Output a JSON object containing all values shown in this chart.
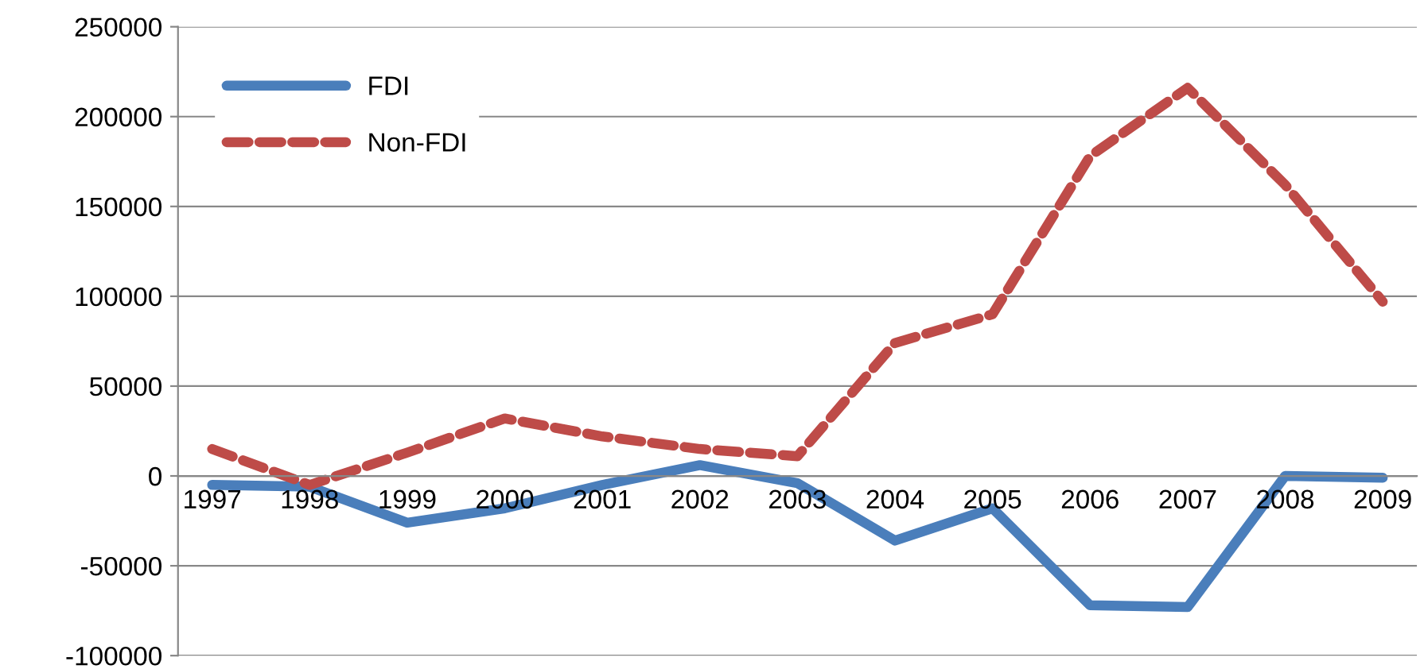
{
  "chart_data": {
    "type": "line",
    "categories": [
      "1997",
      "1998",
      "1999",
      "2000",
      "2001",
      "2002",
      "2003",
      "2004",
      "2005",
      "2006",
      "2007",
      "2008",
      "2009"
    ],
    "series": [
      {
        "name": "FDI",
        "color": "#4a7ebb",
        "line_style": "solid",
        "values": [
          -5000,
          -6000,
          -26000,
          -18000,
          -5000,
          6000,
          -4000,
          -36000,
          -18000,
          -72000,
          -73000,
          0,
          -1000
        ]
      },
      {
        "name": "Non-FDI",
        "color": "#be4b48",
        "line_style": "dashed",
        "values": [
          15000,
          -5000,
          13000,
          32000,
          22000,
          15000,
          11000,
          74000,
          90000,
          178000,
          216000,
          162000,
          97000
        ]
      }
    ],
    "ylim": [
      -100000,
      250000
    ],
    "yticks": [
      -100000,
      -50000,
      0,
      50000,
      100000,
      150000,
      200000,
      250000
    ],
    "grid": "y",
    "legend": "top left",
    "marker": "none"
  }
}
